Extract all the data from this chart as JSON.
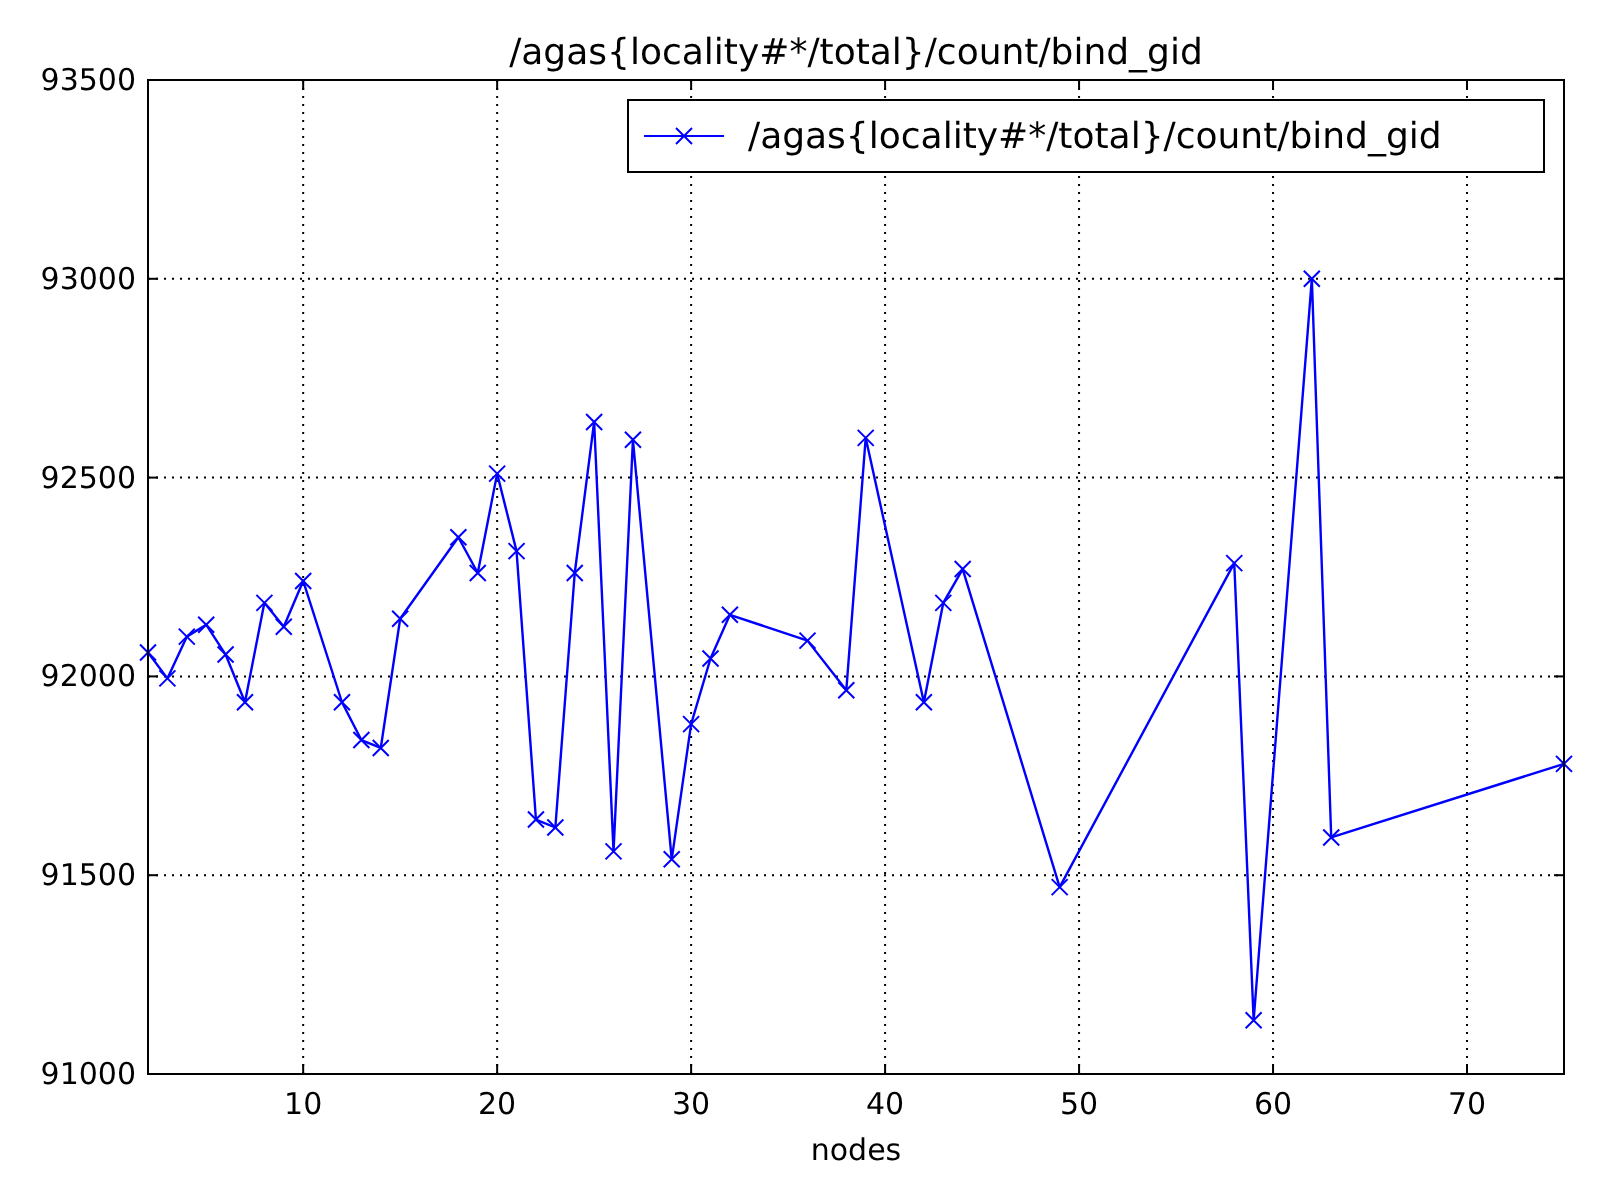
{
  "chart_data": {
    "type": "line",
    "title": "/agas{locality#*/total}/count/bind_gid",
    "xlabel": "nodes",
    "xlim": [
      2,
      75
    ],
    "xticks": [
      10,
      20,
      30,
      40,
      50,
      60,
      70
    ],
    "ylim": [
      91000,
      93500
    ],
    "yticks": [
      91000,
      91500,
      92000,
      92500,
      93000,
      93500
    ],
    "grid": true,
    "legend": "top right",
    "marker": "cross",
    "line_style": "solid",
    "x": [
      2,
      3,
      4,
      5,
      6,
      7,
      8,
      9,
      10,
      12,
      13,
      14,
      15,
      18,
      19,
      20,
      21,
      22,
      23,
      24,
      25,
      26,
      27,
      29,
      30,
      31,
      32,
      36,
      38,
      39,
      42,
      43,
      44,
      49,
      58,
      59,
      62,
      63,
      75
    ],
    "series": [
      {
        "name": "/agas{locality#*/total}/count/bind_gid",
        "color": "#0000ff",
        "values": [
          92060,
          91995,
          92100,
          92130,
          92055,
          91935,
          92185,
          92125,
          92240,
          91935,
          91840,
          91820,
          92145,
          92350,
          92260,
          92510,
          92315,
          91640,
          91620,
          92260,
          92640,
          91560,
          92595,
          91540,
          91880,
          92045,
          92155,
          92090,
          91965,
          92600,
          91935,
          92185,
          92270,
          91470,
          92285,
          91135,
          93000,
          91595,
          91780
        ]
      }
    ]
  }
}
